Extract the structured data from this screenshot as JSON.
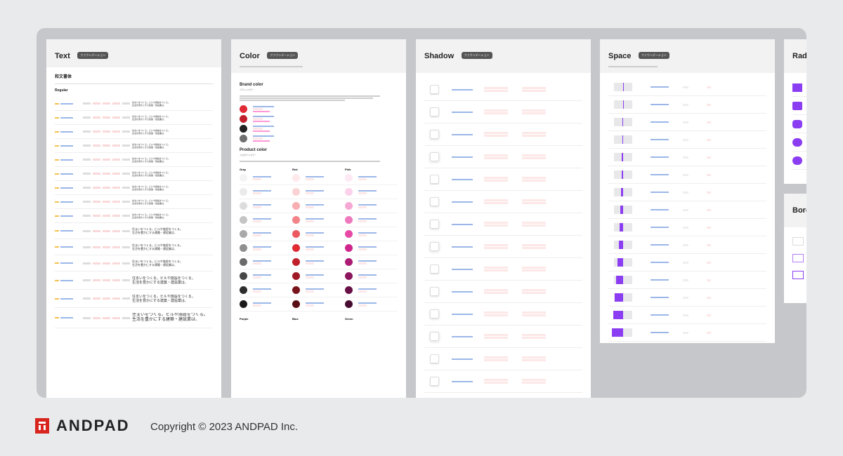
{
  "cards": {
    "text": {
      "title": "Text",
      "badge": "ファウンデーション",
      "sub1": "和文書体",
      "sub2": "Regular"
    },
    "color": {
      "title": "Color",
      "badge": "ファウンデーション",
      "brand": "Brand color",
      "brand_jp": "ブランドカラー",
      "product": "Product color",
      "product_jp": "プロダクトカラー",
      "groups": [
        "Gray",
        "Red",
        "Pink",
        "Purple",
        "Blue",
        "Green"
      ]
    },
    "shadow": {
      "title": "Shadow",
      "badge": "ファウンデーション"
    },
    "space": {
      "title": "Space",
      "badge": "ファウンデーション"
    },
    "radius": {
      "title": "Radi"
    },
    "border": {
      "title": "Bord"
    }
  },
  "sample_text": "住まいをつくる。ビルや施設をつくる。",
  "sample_text2": "生活を豊かにする建築・建設業は、",
  "footer": {
    "brand": "ANDPAD",
    "copyright": "Copyright © 2023 ANDPAD Inc."
  },
  "colors": {
    "brand": [
      "#e02b35",
      "#c0202b",
      "#222222",
      "#6f6f6f"
    ],
    "gray": [
      "#f4f4f4",
      "#ebebeb",
      "#dcdcdc",
      "#c4c4c4",
      "#a9a9a9",
      "#8f8f8f",
      "#6b6b6b",
      "#474747",
      "#2d2d2d",
      "#1a1a1a"
    ],
    "red": [
      "#fde9ea",
      "#fbd3d5",
      "#f7aeb1",
      "#f28387",
      "#ec5a60",
      "#e02b35",
      "#c0202b",
      "#9e1a24",
      "#7a141c",
      "#580e14"
    ],
    "pink": [
      "#fde9f4",
      "#fbd2ea",
      "#f6a8d5",
      "#ef79bd",
      "#e64aa5",
      "#d0258c",
      "#ad1c74",
      "#8b165d",
      "#681045",
      "#480b30"
    ],
    "purple": "#8b3df2"
  }
}
